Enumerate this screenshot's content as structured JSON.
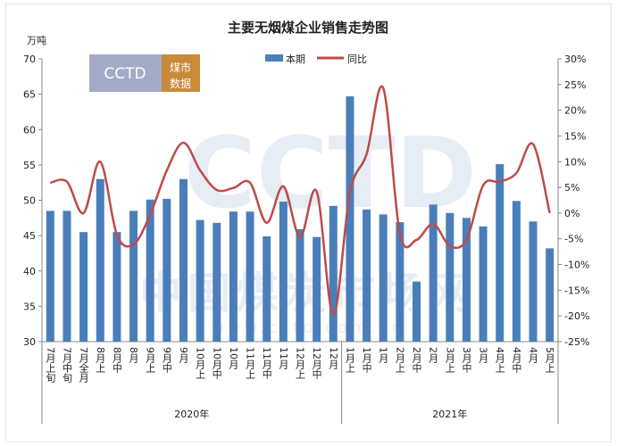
{
  "chart_data": {
    "type": "bar+line",
    "title": "主要无烟煤企业销售走势图",
    "ylabel": "万吨",
    "ylim": [
      30,
      70
    ],
    "yticks": [
      30,
      35,
      40,
      45,
      50,
      55,
      60,
      65,
      70
    ],
    "y2lim": [
      -25,
      30
    ],
    "y2ticks": [
      "-25%",
      "-20%",
      "-15%",
      "-10%",
      "-5%",
      "0%",
      "5%",
      "10%",
      "15%",
      "20%",
      "25%",
      "30%"
    ],
    "y2tick_values": [
      -25,
      -20,
      -15,
      -10,
      -5,
      0,
      5,
      10,
      15,
      20,
      25,
      30
    ],
    "legend_position": "top-center",
    "grid": false,
    "categories": [
      "7月上旬",
      "7月中旬",
      "7月全月",
      "8月上",
      "8月中",
      "8月",
      "9月上",
      "9月中",
      "9月",
      "10月上",
      "10月中",
      "10月",
      "11月上",
      "11月中",
      "11月",
      "12月上",
      "12月中",
      "12月",
      "1月上",
      "1月中",
      "1月",
      "2月上",
      "2月中",
      "2月",
      "3月上",
      "3月中",
      "3月",
      "4月上",
      "4月中",
      "4月",
      "5月上"
    ],
    "groups": [
      {
        "label": "2020年",
        "count": 18
      },
      {
        "label": "2021年",
        "count": 13
      }
    ],
    "series": [
      {
        "name": "本期",
        "type": "bar",
        "axis": "left",
        "color": "#4a7ebb",
        "values": [
          48.5,
          48.5,
          45.5,
          53.0,
          45.5,
          48.5,
          50.1,
          50.2,
          53.0,
          47.2,
          46.8,
          48.4,
          48.4,
          44.9,
          49.8,
          45.9,
          44.8,
          49.2,
          64.7,
          48.7,
          48.0,
          46.9,
          38.5,
          49.4,
          48.2,
          47.5,
          46.3,
          55.1,
          49.9,
          47.0,
          43.2
        ]
      },
      {
        "name": "同比",
        "type": "line",
        "axis": "right",
        "unit": "%",
        "color": "#be4b48",
        "values": [
          5.9,
          6.1,
          0.0,
          10.0,
          -4.2,
          -6.1,
          -0.3,
          8.3,
          13.7,
          8.3,
          4.5,
          4.9,
          5.9,
          -1.9,
          5.2,
          -4.7,
          4.2,
          -19.8,
          4.0,
          11.5,
          24.3,
          -4.0,
          -5.2,
          -2.1,
          -6.4,
          -5.2,
          5.4,
          6.1,
          7.8,
          13.4,
          0.0
        ]
      }
    ]
  },
  "watermark": {
    "logo": "CCTD",
    "logo_badge": "煤市数据",
    "site_name": "中国煤炭市场网",
    "url": "www.cctd.com.cn"
  }
}
